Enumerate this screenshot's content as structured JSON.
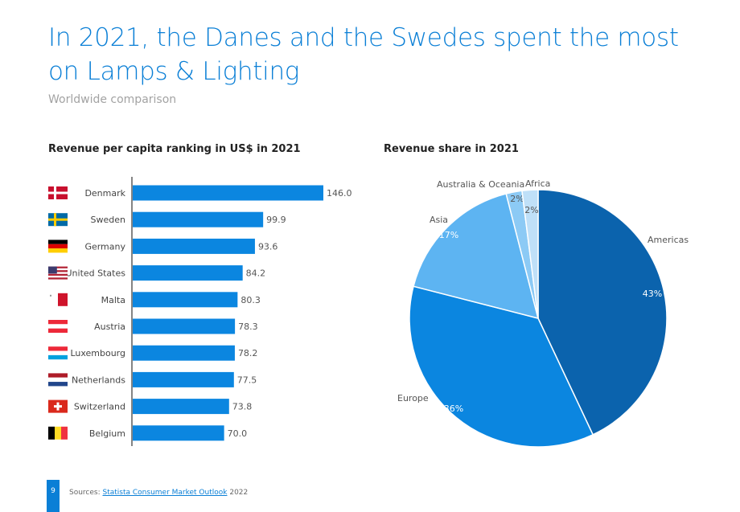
{
  "title": "In 2021, the Danes and the Swedes spent the most on Lamps & Lighting",
  "subtitle": "Worldwide comparison",
  "colors": {
    "accent": "#0a7fd6",
    "bar": "#0b86e0",
    "pie": [
      "#0b63ad",
      "#0b86e0",
      "#5db4f2",
      "#8ccaf5",
      "#bfe0f8"
    ]
  },
  "chart_data": [
    {
      "type": "bar",
      "orientation": "horizontal",
      "title": "Revenue per capita ranking in US$ in 2021",
      "categories": [
        "Denmark",
        "Sweden",
        "Germany",
        "United States",
        "Malta",
        "Austria",
        "Luxembourg",
        "Netherlands",
        "Switzerland",
        "Belgium"
      ],
      "values": [
        146.0,
        99.9,
        93.6,
        84.2,
        80.3,
        78.3,
        78.2,
        77.5,
        73.8,
        70.0
      ],
      "value_labels": [
        "146.0",
        "99.9",
        "93.6",
        "84.2",
        "80.3",
        "78.3",
        "78.2",
        "77.5",
        "73.8",
        "70.0"
      ],
      "icons": [
        "flag-denmark-icon",
        "flag-sweden-icon",
        "flag-germany-icon",
        "flag-united-states-icon",
        "flag-malta-icon",
        "flag-austria-icon",
        "flag-luxembourg-icon",
        "flag-netherlands-icon",
        "flag-switzerland-icon",
        "flag-belgium-icon"
      ],
      "xlim": [
        0,
        146
      ]
    },
    {
      "type": "pie",
      "title": "Revenue share in 2021",
      "labels": [
        "Americas",
        "Europe",
        "Asia",
        "Australia & Oceania",
        "Africa"
      ],
      "values": [
        43,
        36,
        17,
        2,
        2
      ],
      "value_labels": [
        "43%",
        "36%",
        "17%",
        "2%",
        "2%"
      ]
    }
  ],
  "footer": {
    "page_number": "9",
    "source_prefix": "Sources: ",
    "source_link": "Statista Consumer Market Outlook",
    "source_suffix": " 2022"
  }
}
